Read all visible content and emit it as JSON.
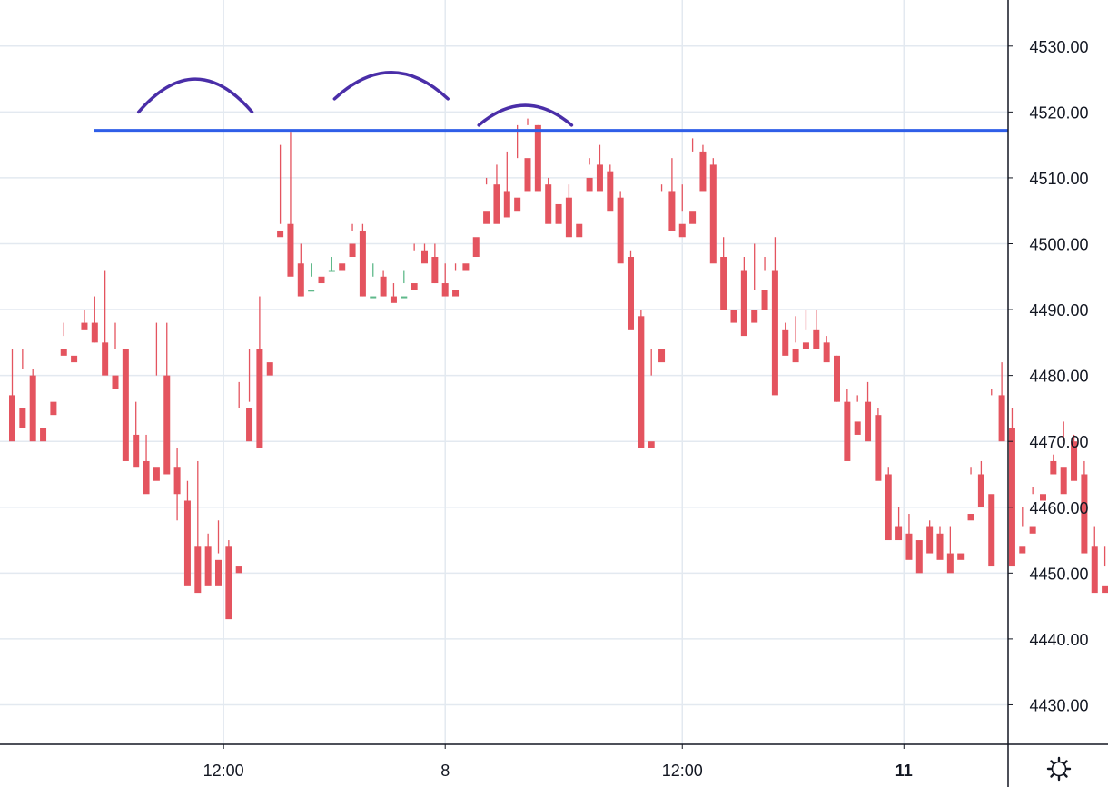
{
  "chart_data": {
    "type": "candlestick",
    "y_axis": {
      "min": 4424,
      "max": 4537,
      "ticks": [
        "4430.00",
        "4440.00",
        "4450.00",
        "4460.00",
        "4470.00",
        "4480.00",
        "4490.00",
        "4500.00",
        "4510.00",
        "4520.00",
        "4530.00"
      ],
      "position": "right"
    },
    "x_axis": {
      "ticks": [
        {
          "label": "12:00",
          "index": 20.5,
          "bold": false
        },
        {
          "label": "8",
          "index": 42,
          "bold": false
        },
        {
          "label": "12:00",
          "index": 65,
          "bold": false
        },
        {
          "label": "11",
          "index": 86.5,
          "bold": true
        }
      ]
    },
    "grid": true,
    "colors": {
      "up": "#5fb98a",
      "down": "#e4545f",
      "grid": "#e3e9f0",
      "axis": "#131722",
      "resistance_line": "#2f5ee8",
      "arcs": "#4a2ea8"
    },
    "resistance_level": 4517.2,
    "candles": [
      [
        4477,
        4484,
        4473,
        4470
      ],
      [
        4475,
        4481,
        4484,
        4472
      ],
      [
        4480,
        4481,
        4471,
        4470
      ],
      [
        4472,
        4476,
        4476,
        4470
      ],
      [
        4476,
        4485,
        4485,
        4474
      ],
      [
        4484,
        4488,
        4486,
        4483
      ],
      [
        4483,
        4489,
        4489,
        4482
      ],
      [
        4488,
        4490,
        4488,
        4487
      ],
      [
        4488,
        4492,
        4485,
        4485
      ],
      [
        4485,
        4496,
        4481,
        4480
      ],
      [
        4480,
        4488,
        4484,
        4478
      ],
      [
        4484,
        4484,
        4468,
        4467
      ],
      [
        4471,
        4476,
        4467,
        4466
      ],
      [
        4467,
        4471,
        4466,
        4462
      ],
      [
        4466,
        4488,
        4480,
        4464
      ],
      [
        4480,
        4488,
        4466,
        4465
      ],
      [
        4466,
        4469,
        4458,
        4462
      ],
      [
        4461,
        4464,
        4454,
        4448
      ],
      [
        4454,
        4467,
        4452,
        4447
      ],
      [
        4454,
        4456,
        4452,
        4448
      ],
      [
        4452,
        4458,
        4453,
        4448
      ],
      [
        4454,
        4455,
        4452,
        4443
      ],
      [
        4451,
        4479,
        4475,
        4450
      ],
      [
        4475,
        4476,
        4484,
        4470
      ],
      [
        4484,
        4492,
        4482,
        4469
      ],
      [
        4482,
        4502,
        4502,
        4480
      ],
      [
        4502,
        4515,
        4503,
        4501
      ],
      [
        4503,
        4517,
        4497,
        4495
      ],
      [
        4497,
        4500,
        4492,
        4492
      ],
      [
        4493,
        4497,
        4495,
        4493
      ],
      [
        4495,
        4498,
        4498,
        4494
      ],
      [
        4496,
        4498,
        4496,
        4496
      ],
      [
        4497,
        4500,
        4500,
        4496
      ],
      [
        4500,
        4503,
        4502,
        4498
      ],
      [
        4502,
        4503,
        4492,
        4492
      ],
      [
        4492,
        4497,
        4495,
        4492
      ],
      [
        4495,
        4496,
        4492,
        4492
      ],
      [
        4492,
        4494,
        4492,
        4491
      ],
      [
        4492,
        4496,
        4494,
        4492
      ],
      [
        4494,
        4500,
        4499,
        4493
      ],
      [
        4499,
        4500,
        4498,
        4497
      ],
      [
        4498,
        4500,
        4494,
        4494
      ],
      [
        4494,
        4497,
        4493,
        4492
      ],
      [
        4493,
        4496,
        4497,
        4492
      ],
      [
        4497,
        4501,
        4501,
        4496
      ],
      [
        4501,
        4505,
        4505,
        4498
      ],
      [
        4505,
        4510,
        4509,
        4503
      ],
      [
        4509,
        4512,
        4508,
        4503
      ],
      [
        4508,
        4514,
        4507,
        4504
      ],
      [
        4507,
        4518,
        4513,
        4505
      ],
      [
        4513,
        4519,
        4518,
        4508
      ],
      [
        4518,
        4518,
        4509,
        4508
      ],
      [
        4509,
        4510,
        4506,
        4503
      ],
      [
        4506,
        4507,
        4507,
        4503
      ],
      [
        4507,
        4509,
        4503,
        4501
      ],
      [
        4503,
        4510,
        4510,
        4501
      ],
      [
        4510,
        4513,
        4512,
        4508
      ],
      [
        4512,
        4515,
        4511,
        4508
      ],
      [
        4511,
        4512,
        4507,
        4505
      ],
      [
        4507,
        4508,
        4498,
        4497
      ],
      [
        4498,
        4499,
        4489,
        4487
      ],
      [
        4489,
        4490,
        4470,
        4469
      ],
      [
        4470,
        4480,
        4484,
        4469
      ],
      [
        4484,
        4509,
        4508,
        4482
      ],
      [
        4508,
        4513,
        4503,
        4502
      ],
      [
        4503,
        4509,
        4505,
        4501
      ],
      [
        4505,
        4516,
        4514,
        4503
      ],
      [
        4514,
        4515,
        4512,
        4508
      ],
      [
        4512,
        4513,
        4498,
        4497
      ],
      [
        4498,
        4501,
        4490,
        4490
      ],
      [
        4490,
        4496,
        4496,
        4488
      ],
      [
        4496,
        4498,
        4490,
        4486
      ],
      [
        4490,
        4500,
        4493,
        4488
      ],
      [
        4493,
        4498,
        4496,
        4490
      ],
      [
        4496,
        4501,
        4487,
        4477
      ],
      [
        4487,
        4488,
        4484,
        4483
      ],
      [
        4484,
        4489,
        4485,
        4482
      ],
      [
        4485,
        4490,
        4487,
        4484
      ],
      [
        4487,
        4490,
        4485,
        4484
      ],
      [
        4485,
        4486,
        4483,
        4482
      ],
      [
        4483,
        4483,
        4476,
        4476
      ],
      [
        4476,
        4478,
        4473,
        4467
      ],
      [
        4473,
        4477,
        4476,
        4471
      ],
      [
        4476,
        4479,
        4474,
        4470
      ],
      [
        4474,
        4475,
        4465,
        4464
      ],
      [
        4465,
        4466,
        4457,
        4455
      ],
      [
        4457,
        4460,
        4456,
        4455
      ],
      [
        4456,
        4459,
        4455,
        4452
      ],
      [
        4455,
        4457,
        4457,
        4450
      ],
      [
        4457,
        4458,
        4456,
        4453
      ],
      [
        4456,
        4457,
        4453,
        4452
      ],
      [
        4453,
        4457,
        4453,
        4450
      ],
      [
        4453,
        4459,
        4459,
        4452
      ],
      [
        4459,
        4466,
        4465,
        4458
      ],
      [
        4465,
        4467,
        4462,
        4460
      ],
      [
        4462,
        4478,
        4477,
        4451
      ],
      [
        4477,
        4482,
        4472,
        4470
      ],
      [
        4472,
        4475,
        4454,
        4451
      ],
      [
        4454,
        4460,
        4457,
        4453
      ],
      [
        4457,
        4463,
        4462,
        4456
      ],
      [
        4462,
        4467,
        4467,
        4461
      ],
      [
        4467,
        4468,
        4466,
        4465
      ],
      [
        4466,
        4473,
        4470,
        4462
      ],
      [
        4470,
        4471,
        4465,
        4464
      ],
      [
        4465,
        4467,
        4454,
        4453
      ],
      [
        4454,
        4457,
        4448,
        4447
      ],
      [
        4448,
        4454,
        4451,
        4447
      ],
      [
        4451,
        4455,
        4455,
        4449
      ]
    ],
    "annotations": {
      "arcs": [
        {
          "from": [
            12,
            4520
          ],
          "peak": [
            17.5,
            4525
          ],
          "to": [
            23,
            4520
          ]
        },
        {
          "from": [
            31,
            4522
          ],
          "peak": [
            36.5,
            4526
          ],
          "to": [
            42,
            4522
          ]
        },
        {
          "from": [
            45,
            4518
          ],
          "peak": [
            49.5,
            4521
          ],
          "to": [
            54,
            4518
          ]
        }
      ]
    }
  },
  "toolbar": {
    "settings_icon": "gear-icon"
  }
}
